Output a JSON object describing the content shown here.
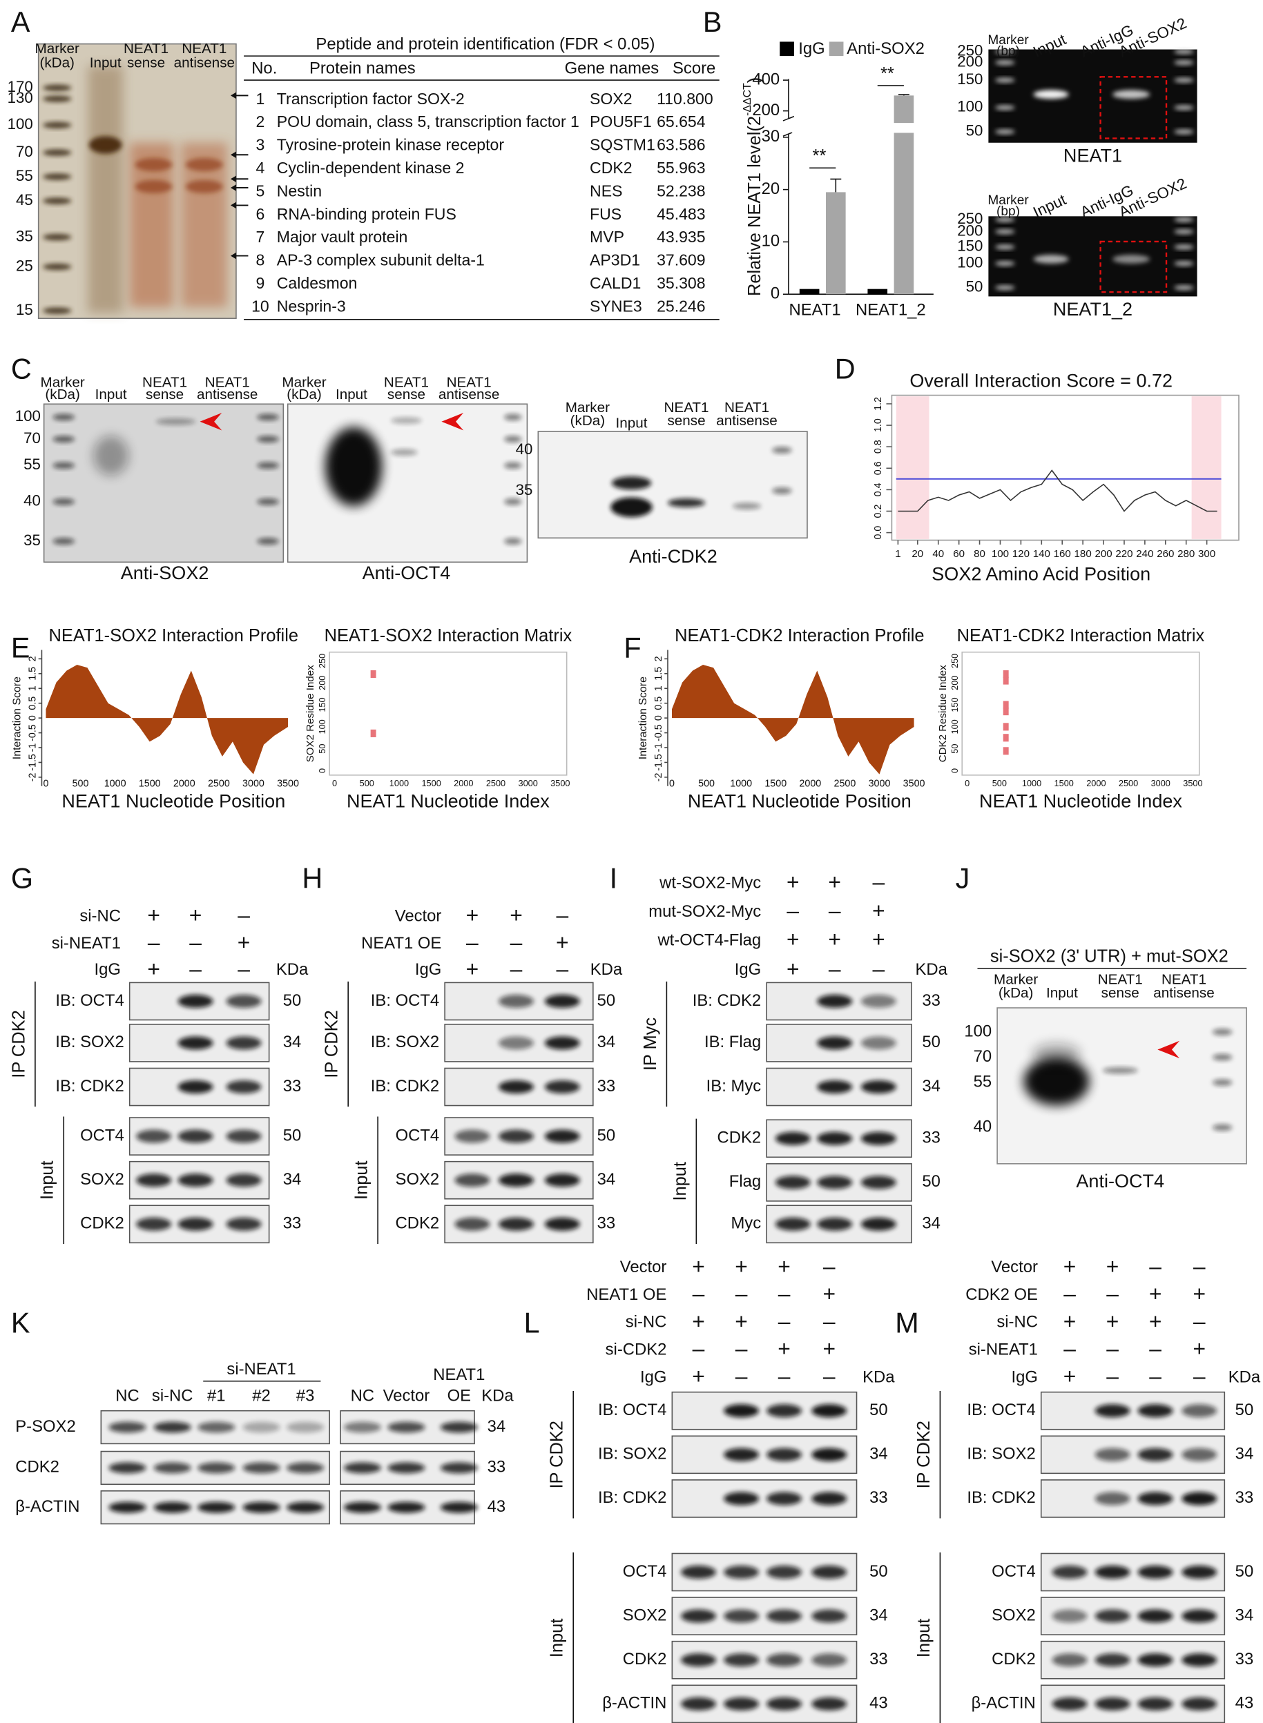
{
  "letters": [
    "A",
    "B",
    "C",
    "D",
    "E",
    "F",
    "G",
    "H",
    "I",
    "J",
    "K",
    "L",
    "M"
  ],
  "A": {
    "gel_header": [
      "Marker",
      "(kDa)",
      "Input",
      "NEAT1",
      "sense",
      "NEAT1",
      "antisense"
    ],
    "markers": [
      170,
      130,
      100,
      70,
      55,
      45,
      35,
      25,
      15
    ],
    "table": {
      "title": "Peptide and protein identification (FDR < 0.05)",
      "header": [
        "No.",
        "Protein names",
        "Gene names",
        "Score"
      ],
      "rows": [
        [
          "1",
          "Transcription factor SOX-2",
          "SOX2",
          "110.800"
        ],
        [
          "2",
          "POU domain, class 5, transcription factor 1",
          "POU5F1",
          "65.654"
        ],
        [
          "3",
          "Tyrosine-protein kinase receptor",
          "SQSTM1",
          "63.586"
        ],
        [
          "4",
          "Cyclin-dependent kinase 2",
          "CDK2",
          "55.963"
        ],
        [
          "5",
          "Nestin",
          "NES",
          "52.238"
        ],
        [
          "6",
          "RNA-binding protein FUS",
          "FUS",
          "45.483"
        ],
        [
          "7",
          "Major vault protein",
          "MVP",
          "43.935"
        ],
        [
          "8",
          "AP-3 complex subunit delta-1",
          "AP3D1",
          "37.609"
        ],
        [
          "9",
          "Caldesmon",
          "CALD1",
          "35.308"
        ],
        [
          "10",
          "Nesprin-3",
          "SYNE3",
          "25.246"
        ]
      ]
    }
  },
  "chart_data": {
    "type": "bar",
    "categories": [
      "NEAT1",
      "NEAT1_2"
    ],
    "series": [
      {
        "name": "IgG",
        "color": "#000000",
        "values": [
          1,
          1
        ]
      },
      {
        "name": "Anti-SOX2",
        "color": "#a6a6a6",
        "values": [
          19.5,
          300
        ],
        "errors": [
          2.5,
          6
        ]
      }
    ],
    "ylabel": "Relative NEAT1 level(2",
    "ylabel_sup": "-ΔΔCT",
    "ylabel_end": ")",
    "ylim": [
      0,
      400
    ],
    "ybreak": [
      30,
      170
    ],
    "yticks": [
      0,
      10,
      20,
      30,
      200,
      400
    ],
    "annotations": [
      "**",
      "**"
    ]
  },
  "B": {
    "gels": [
      {
        "header": [
          "Marker",
          "(bp)",
          "Input",
          "Anti-IgG",
          "Anti-SOX2"
        ],
        "ladder": [
          250,
          200,
          150,
          100,
          50
        ],
        "caption": "NEAT1"
      },
      {
        "header": [
          "Marker",
          "(bp)",
          "Input",
          "Anti-IgG",
          "Anti-SOX2"
        ],
        "ladder": [
          250,
          200,
          150,
          100,
          50
        ],
        "caption": "NEAT1_2"
      }
    ]
  },
  "C": {
    "gels": [
      {
        "header": [
          "Marker",
          "(kDa)",
          "Input",
          "NEAT1",
          "sense",
          "NEAT1",
          "antisense"
        ],
        "markers": [
          100,
          70,
          55,
          40,
          35
        ],
        "caption": "Anti-SOX2"
      },
      {
        "header": [
          "Marker",
          "(kDa)",
          "Input",
          "NEAT1",
          "sense",
          "NEAT1",
          "antisense"
        ],
        "markers": [],
        "caption": "Anti-OCT4"
      },
      {
        "header": [
          "Marker",
          "(kDa)",
          "Input",
          "NEAT1",
          "sense",
          "NEAT1",
          "antisense"
        ],
        "markers": [
          40,
          35
        ],
        "caption": "Anti-CDK2"
      }
    ]
  },
  "D": {
    "title": "Overall Interaction Score = 0.72",
    "xlabel": "SOX2 Amino Acid Position",
    "yticks": [
      "0.0",
      "0.2",
      "0.4",
      "0.6",
      "0.8",
      "1.0",
      "1.2"
    ],
    "ytick_values": [
      0,
      0.2,
      0.4,
      0.6,
      0.8,
      1,
      1.2
    ],
    "xticks": [
      1,
      20,
      40,
      60,
      80,
      100,
      120,
      140,
      160,
      180,
      200,
      220,
      240,
      260,
      280,
      300
    ],
    "xlim": [
      -5,
      331
    ],
    "ylim": [
      -0.07,
      1.28
    ],
    "threshold": 0.5,
    "x": [
      1,
      20,
      30,
      40,
      50,
      60,
      70,
      80,
      90,
      100,
      110,
      120,
      130,
      140,
      150,
      160,
      170,
      180,
      190,
      200,
      210,
      220,
      230,
      240,
      250,
      260,
      270,
      280,
      290,
      300,
      310
    ],
    "values": [
      0.2,
      0.2,
      0.3,
      0.33,
      0.3,
      0.35,
      0.38,
      0.32,
      0.36,
      0.4,
      0.3,
      0.38,
      0.42,
      0.45,
      0.58,
      0.45,
      0.4,
      0.3,
      0.38,
      0.45,
      0.35,
      0.2,
      0.3,
      0.35,
      0.38,
      0.3,
      0.25,
      0.3,
      0.25,
      0.2,
      0.2
    ]
  },
  "E": {
    "profile": {
      "title": "NEAT1-SOX2 Interaction Profile",
      "ylabel": "Interaction Score",
      "xlabel": "NEAT1 Nucleotide Position",
      "yticks": [
        2,
        1.5,
        1,
        0.5,
        0,
        -0.5,
        -1,
        -1.5,
        -2
      ],
      "xticks": [
        0,
        500,
        1000,
        1500,
        2000,
        2500,
        3000,
        3500
      ],
      "xlim": [
        -60,
        3560
      ],
      "ylim": [
        -2.3,
        2.3
      ],
      "x": [
        0,
        150,
        300,
        450,
        600,
        750,
        900,
        1050,
        1200,
        1350,
        1500,
        1650,
        1800,
        1950,
        2100,
        2250,
        2400,
        2550,
        2700,
        2850,
        3000,
        3150,
        3300,
        3500
      ],
      "values": [
        0.3,
        1.2,
        1.6,
        1.8,
        1.7,
        1.1,
        0.5,
        0.3,
        0.1,
        -0.3,
        -0.8,
        -0.6,
        -0.2,
        0.8,
        1.6,
        0.7,
        -0.6,
        -1.3,
        -0.8,
        -1.5,
        -1.9,
        -0.9,
        -0.6,
        -0.3
      ]
    },
    "matrix": {
      "title": "NEAT1-SOX2 Interaction Matrix",
      "ylabel": "SOX2 Residue Index",
      "xlabel": "NEAT1 Nucleotide Index",
      "yticks": [
        0,
        50,
        100,
        150,
        200,
        250
      ],
      "xticks": [
        0,
        500,
        1000,
        1500,
        2000,
        2500,
        3000,
        3500
      ],
      "xlim": [
        -80,
        3600
      ],
      "ylim": [
        -10,
        270
      ],
      "x": [
        600,
        600
      ],
      "y": [
        220,
        85
      ]
    }
  },
  "F": {
    "profile": {
      "title": "NEAT1-CDK2 Interaction Profile",
      "ylabel": "Interaction Score",
      "xlabel": "NEAT1 Nucleotide Position",
      "yticks": [
        2,
        1.5,
        1,
        0.5,
        0,
        -0.5,
        -1,
        -1.5,
        -2
      ],
      "xticks": [
        0,
        500,
        1000,
        1500,
        2000,
        2500,
        3000,
        3500
      ],
      "xlim": [
        -60,
        3560
      ],
      "ylim": [
        -2.3,
        2.3
      ],
      "x": [
        0,
        150,
        300,
        450,
        600,
        750,
        900,
        1050,
        1200,
        1350,
        1500,
        1650,
        1800,
        1950,
        2100,
        2250,
        2400,
        2550,
        2700,
        2850,
        3000,
        3150,
        3300,
        3500
      ],
      "values": [
        0.3,
        1.2,
        1.6,
        1.8,
        1.7,
        1.1,
        0.5,
        0.3,
        0.1,
        -0.3,
        -0.8,
        -0.6,
        -0.2,
        0.8,
        1.6,
        0.7,
        -0.6,
        -1.3,
        -0.8,
        -1.5,
        -1.9,
        -0.9,
        -0.6,
        -0.3
      ]
    },
    "matrix": {
      "title": "NEAT1-CDK2 Interaction Matrix",
      "ylabel": "CDK2 Residue Index",
      "xlabel": "NEAT1 Nucleotide Index",
      "yticks": [
        0,
        50,
        100,
        150,
        200,
        250
      ],
      "xticks": [
        0,
        500,
        1000,
        1500,
        2000,
        2500,
        3000,
        3500
      ],
      "xlim": [
        -80,
        3600
      ],
      "ylim": [
        -10,
        270
      ],
      "x": [
        600,
        600,
        600,
        600,
        600,
        600,
        600
      ],
      "y": [
        220,
        205,
        150,
        135,
        100,
        75,
        45
      ]
    }
  },
  "G": {
    "conditions": [
      {
        "name": "si-NC",
        "signs": [
          "+",
          "+",
          "–"
        ]
      },
      {
        "name": "si-NEAT1",
        "signs": [
          "–",
          "–",
          "+"
        ]
      },
      {
        "name": "IgG",
        "signs": [
          "+",
          "–",
          "–"
        ]
      }
    ],
    "kda_header": "KDa",
    "ip": {
      "label": "IP CDK2",
      "rows": [
        {
          "label": "IB: OCT4",
          "kda": 50
        },
        {
          "label": "IB: SOX2",
          "kda": 34
        },
        {
          "label": "IB: CDK2",
          "kda": 33
        }
      ]
    },
    "input": {
      "label": "Input",
      "rows": [
        {
          "label": "OCT4",
          "kda": 50
        },
        {
          "label": "SOX2",
          "kda": 34
        },
        {
          "label": "CDK2",
          "kda": 33
        }
      ]
    }
  },
  "H": {
    "conditions": [
      {
        "name": "Vector",
        "signs": [
          "+",
          "+",
          "–"
        ]
      },
      {
        "name": "NEAT1 OE",
        "signs": [
          "–",
          "–",
          "+"
        ]
      },
      {
        "name": "IgG",
        "signs": [
          "+",
          "–",
          "–"
        ]
      }
    ],
    "kda_header": "KDa",
    "ip": {
      "label": "IP CDK2",
      "rows": [
        {
          "label": "IB: OCT4",
          "kda": 50
        },
        {
          "label": "IB: SOX2",
          "kda": 34
        },
        {
          "label": "IB: CDK2",
          "kda": 33
        }
      ]
    },
    "input": {
      "label": "Input",
      "rows": [
        {
          "label": "OCT4",
          "kda": 50
        },
        {
          "label": "SOX2",
          "kda": 34
        },
        {
          "label": "CDK2",
          "kda": 33
        }
      ]
    }
  },
  "I": {
    "conditions": [
      {
        "name": "wt-SOX2-Myc",
        "signs": [
          "+",
          "+",
          "–"
        ]
      },
      {
        "name": "mut-SOX2-Myc",
        "signs": [
          "–",
          "–",
          "+"
        ]
      },
      {
        "name": "wt-OCT4-Flag",
        "signs": [
          "+",
          "+",
          "+"
        ]
      },
      {
        "name": "IgG",
        "signs": [
          "+",
          "–",
          "–"
        ]
      }
    ],
    "kda_header": "KDa",
    "ip": {
      "label": "IP Myc",
      "rows": [
        {
          "label": "IB: CDK2",
          "kda": 33
        },
        {
          "label": "IB: Flag",
          "kda": 50
        },
        {
          "label": "IB: Myc",
          "kda": 34
        }
      ]
    },
    "input": {
      "label": "Input",
      "rows": [
        {
          "label": "CDK2",
          "kda": 33
        },
        {
          "label": "Flag",
          "kda": 50
        },
        {
          "label": "Myc",
          "kda": 34
        }
      ]
    }
  },
  "J": {
    "title": "si-SOX2 (3' UTR) + mut-SOX2",
    "header": [
      "Marker",
      "(kDa)",
      "Input",
      "NEAT1",
      "sense",
      "NEAT1",
      "antisense"
    ],
    "markers": [
      100,
      70,
      55,
      40
    ],
    "caption": "Anti-OCT4"
  },
  "K": {
    "group": "si-NEAT1",
    "lanes": [
      "NC",
      "si-NC",
      "#1",
      "#2",
      "#3",
      "NC",
      "Vector",
      "NEAT1",
      "OE"
    ],
    "kda_header": "KDa",
    "rows": [
      {
        "label": "P-SOX2",
        "kda": 34
      },
      {
        "label": "CDK2",
        "kda": 33
      },
      {
        "label": "β-ACTIN",
        "kda": 43
      }
    ]
  },
  "L": {
    "conditions": [
      {
        "name": "Vector",
        "signs": [
          "+",
          "+",
          "+",
          "–"
        ]
      },
      {
        "name": "NEAT1 OE",
        "signs": [
          "–",
          "–",
          "–",
          "+"
        ]
      },
      {
        "name": "si-NC",
        "signs": [
          "+",
          "+",
          "–",
          "–"
        ]
      },
      {
        "name": "si-CDK2",
        "signs": [
          "–",
          "–",
          "+",
          "+"
        ]
      },
      {
        "name": "IgG",
        "signs": [
          "+",
          "–",
          "–",
          "–"
        ]
      }
    ],
    "kda_header": "KDa",
    "ip": {
      "label": "IP CDK2",
      "rows": [
        {
          "label": "IB: OCT4",
          "kda": 50
        },
        {
          "label": "IB: SOX2",
          "kda": 34
        },
        {
          "label": "IB: CDK2",
          "kda": 33
        }
      ]
    },
    "input": {
      "label": "Input",
      "rows": [
        {
          "label": "OCT4",
          "kda": 50
        },
        {
          "label": "SOX2",
          "kda": 34
        },
        {
          "label": "CDK2",
          "kda": 33
        },
        {
          "label": "β-ACTIN",
          "kda": 43
        }
      ]
    }
  },
  "M": {
    "conditions": [
      {
        "name": "Vector",
        "signs": [
          "+",
          "+",
          "–",
          "–"
        ]
      },
      {
        "name": "CDK2 OE",
        "signs": [
          "–",
          "–",
          "+",
          "+"
        ]
      },
      {
        "name": "si-NC",
        "signs": [
          "+",
          "+",
          "+",
          "–"
        ]
      },
      {
        "name": "si-NEAT1",
        "signs": [
          "–",
          "–",
          "–",
          "+"
        ]
      },
      {
        "name": "IgG",
        "signs": [
          "+",
          "–",
          "–",
          "–"
        ]
      }
    ],
    "kda_header": "KDa",
    "ip": {
      "label": "IP CDK2",
      "rows": [
        {
          "label": "IB: OCT4",
          "kda": 50
        },
        {
          "label": "IB: SOX2",
          "kda": 34
        },
        {
          "label": "IB: CDK2",
          "kda": 33
        }
      ]
    },
    "input": {
      "label": "Input",
      "rows": [
        {
          "label": "OCT4",
          "kda": 50
        },
        {
          "label": "SOX2",
          "kda": 34
        },
        {
          "label": "CDK2",
          "kda": 33
        },
        {
          "label": "β-ACTIN",
          "kda": 43
        }
      ]
    }
  }
}
